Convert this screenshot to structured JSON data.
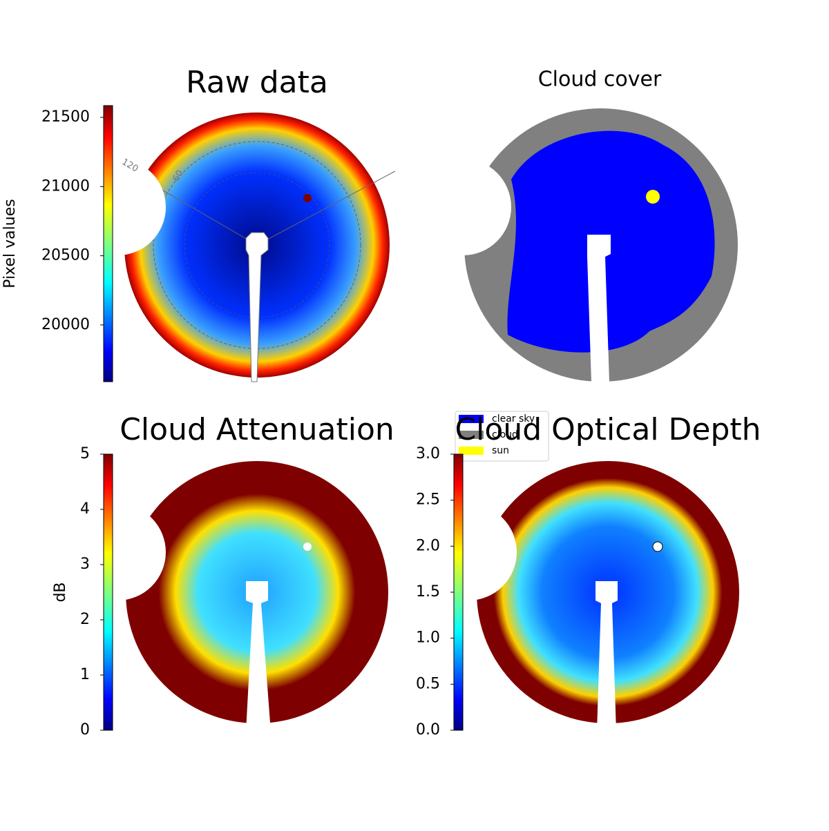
{
  "chart_data": [
    {
      "type": "image",
      "title": "Raw data",
      "colorbar_label": "Pixel values",
      "colormap": "jet",
      "ylim": [
        19590,
        21585
      ],
      "yticks": [
        20000,
        20500,
        21000,
        21500
      ],
      "annotations": [
        "120",
        "60"
      ]
    },
    {
      "type": "image",
      "title": "Cloud cover",
      "legend": [
        {
          "name": "clear sky",
          "color": "#0000ff"
        },
        {
          "name": "cloud",
          "color": "#808080"
        },
        {
          "name": "sun",
          "color": "#ffff00"
        }
      ]
    },
    {
      "type": "image",
      "title": "Cloud Attenuation",
      "colorbar_label": "dB",
      "colormap": "jet",
      "ylim": [
        0,
        5
      ],
      "yticks": [
        0,
        1,
        2,
        3,
        4,
        5
      ]
    },
    {
      "type": "image",
      "title": "Cloud Optical Depth",
      "colormap": "jet",
      "ylim": [
        0,
        3
      ],
      "yticks": [
        {
          "value": 0,
          "label": "0.0"
        },
        0.5,
        {
          "value": 1,
          "label": "1.0"
        },
        1.5,
        {
          "value": 2,
          "label": "2.0"
        },
        2.5,
        {
          "value": 3,
          "label": "3.0"
        }
      ]
    }
  ]
}
